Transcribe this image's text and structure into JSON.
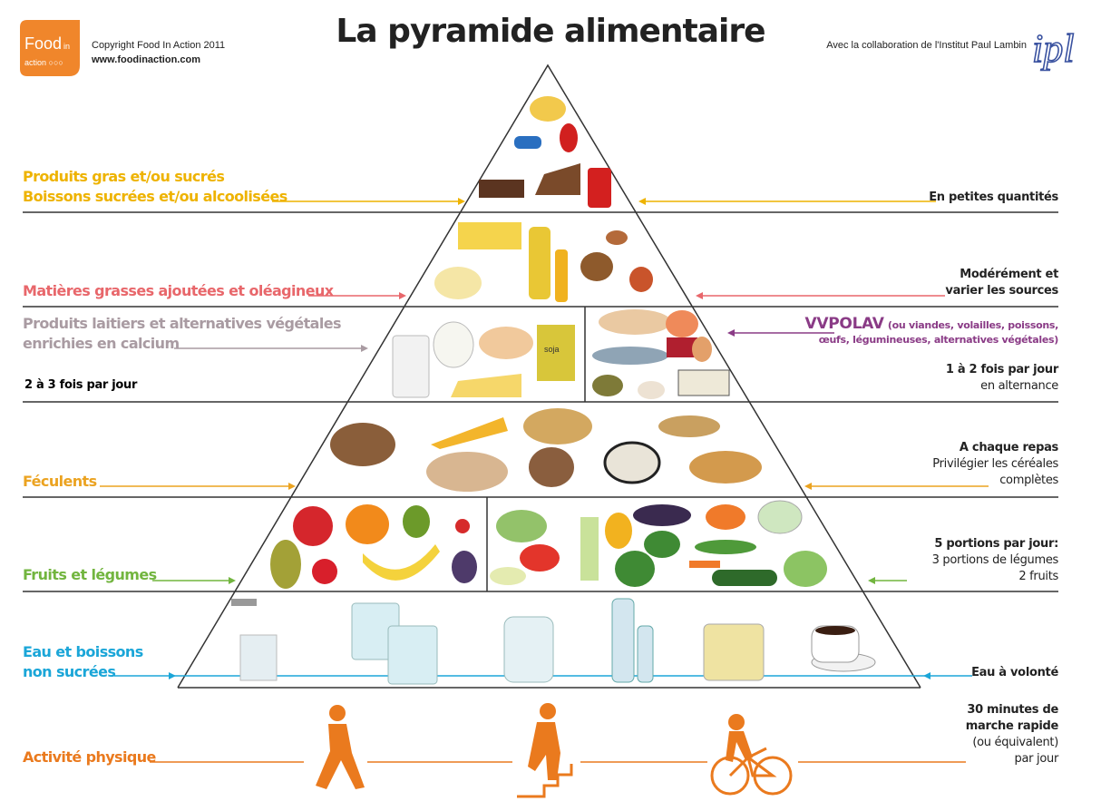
{
  "header": {
    "title": "La pyramide alimentaire",
    "logo_text": "Food in action",
    "copyright": "Copyright Food In Action 2011",
    "website": "www.foodinaction.com",
    "collaboration": "Avec la collaboration de l'Institut Paul Lambin",
    "ipl_logo_text": "ipl"
  },
  "colors": {
    "sweets": "#eeb300",
    "fats": "#e8676b",
    "dairy": "#a99ba2",
    "protein": "#8a3b86",
    "starch": "#eba321",
    "fruitveg": "#72b53f",
    "water": "#1ba6d8",
    "activity": "#ea7a1e"
  },
  "tiers": {
    "sweets": {
      "label1": "Produits gras et/ou sucrés",
      "label2": "Boissons sucrées et/ou alcoolisées",
      "advice": "En petites quantités"
    },
    "fats": {
      "label": "Matières grasses ajoutées et oléagineux",
      "advice1": "Modérément et",
      "advice2": "varier les sources"
    },
    "dairy": {
      "label1": "Produits laitiers et alternatives végétales",
      "label2": "enrichies en calcium",
      "frequency": "2 à 3 fois par jour",
      "soja_label": "soja"
    },
    "protein": {
      "label": "VVPOLAV",
      "detail1": "(ou viandes, volailles, poissons,",
      "detail2": "œufs, légumineuses, alternatives végétales)",
      "frequency": "1 à 2 fois par jour",
      "frequency2": "en alternance"
    },
    "starch": {
      "label": "Féculents",
      "advice1": "A chaque repas",
      "advice2": "Privilégier les céréales",
      "advice3": "complètes"
    },
    "fruitveg": {
      "label": "Fruits et légumes",
      "advice1": "5 portions par jour:",
      "advice2": "3 portions de légumes",
      "advice3": "2 fruits"
    },
    "water": {
      "label1": "Eau et boissons",
      "label2": "non sucrées",
      "advice": "Eau à volonté"
    },
    "activity": {
      "label": "Activité physique",
      "advice1": "30 minutes de",
      "advice2": "marche rapide",
      "advice3": "(ou équivalent)",
      "advice4": "par jour"
    }
  }
}
